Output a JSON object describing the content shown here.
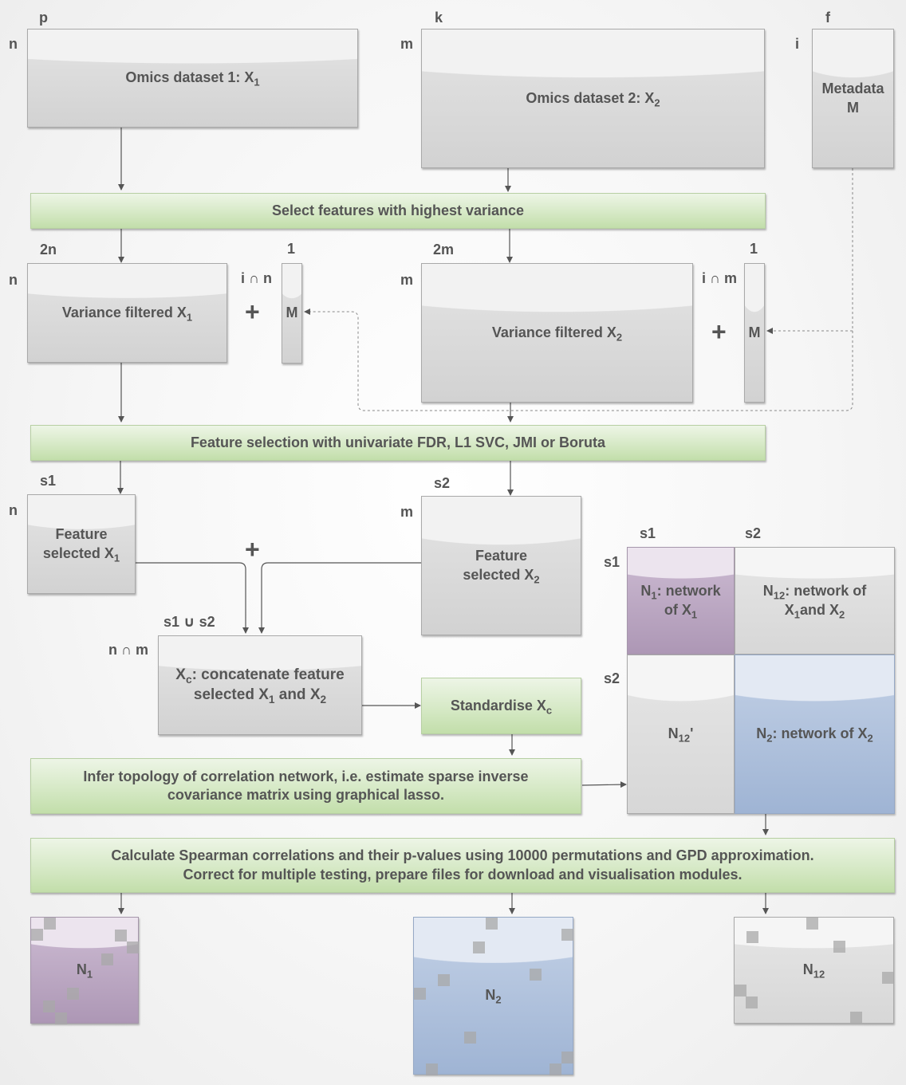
{
  "dims": {
    "p": "p",
    "n": "n",
    "k": "k",
    "m": "m",
    "f": "f",
    "i": "i",
    "two_n": "2n",
    "two_m": "2m",
    "one": "1",
    "i_cap_n": "i ∩ n",
    "i_cap_m": "i ∩ m",
    "s1": "s1",
    "s2": "s2",
    "s1_cup_s2": "s1 ∪ s2",
    "n_cap_m": "n ∩ m"
  },
  "plus_sign": "+",
  "omics1": {
    "text": "Omics dataset 1: X",
    "sub": "1"
  },
  "omics2": {
    "text": "Omics dataset 2: X",
    "sub": "2"
  },
  "metadata": {
    "line1": "Metadata",
    "line2": "M"
  },
  "select_variance": "Select features with highest variance",
  "varfilt1": {
    "text": "Variance filtered X",
    "sub": "1"
  },
  "varfilt2": {
    "text": "Variance filtered X",
    "sub": "2"
  },
  "m_vec": "M",
  "feature_selection": "Feature selection with univariate FDR, L1 SVC, JMI or Boruta",
  "featsel1": {
    "line1": "Feature",
    "line2": "selected X",
    "sub": "1"
  },
  "featsel2": {
    "line1": "Feature",
    "line2": "selected X",
    "sub": "2"
  },
  "xc": {
    "a": "X",
    "a_sub": "c",
    "b": ": concatenate feature",
    "c": "selected X",
    "c_sub": "1",
    "d": " and X",
    "d_sub": "2"
  },
  "standardise": {
    "text": "Standardise X",
    "sub": "c"
  },
  "infer": {
    "line1": "Infer topology of correlation network, i.e. estimate sparse inverse",
    "line2": "covariance matrix using graphical lasso."
  },
  "matrix": {
    "n1": {
      "a": "N",
      "a_sub": "1",
      "b": ": network",
      "c": "of X",
      "c_sub": "1"
    },
    "n12": {
      "a": "N",
      "a_sub": "12",
      "b": ": network  of",
      "c": "X",
      "c_sub": "1",
      "d": "and X",
      "d_sub": "2"
    },
    "n12p": {
      "a": "N",
      "a_sub": "12",
      "b": "'"
    },
    "n2": {
      "a": "N",
      "a_sub": "2",
      "b": ": network of X",
      "b_sub": "2"
    }
  },
  "spearman": {
    "line1": "Calculate Spearman correlations and their p-values using 10000 permutations and GPD approximation.",
    "line2": "Correct for multiple testing, prepare files for download and visualisation modules."
  },
  "outputs": {
    "n1": {
      "a": "N",
      "sub": "1"
    },
    "n2": {
      "a": "N",
      "sub": "2"
    },
    "n12": {
      "a": "N",
      "sub": "12"
    }
  },
  "colors": {
    "green": "#d6e9c6",
    "gray": "#dcdcdc",
    "purple": "#b9a5c0",
    "blue": "#aabcd9",
    "arrow": "#555555"
  }
}
